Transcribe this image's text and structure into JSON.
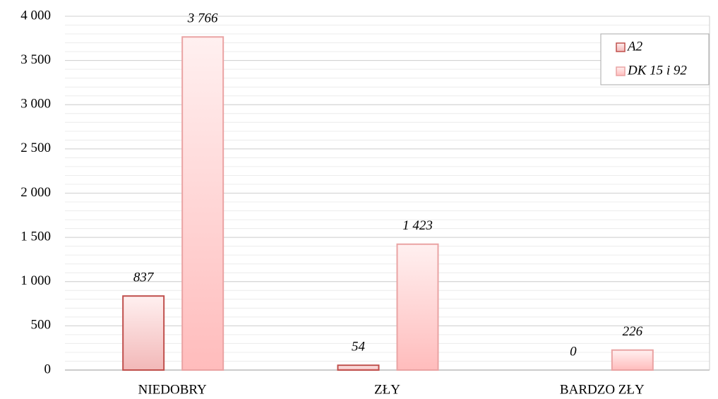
{
  "chart_data": {
    "type": "bar",
    "categories": [
      "NIEDOBRY",
      "ZŁY",
      "BARDZO ZŁY"
    ],
    "series": [
      {
        "name": "A2",
        "color": "#c0504d",
        "fill": "#f2b8b8",
        "values": [
          837,
          54,
          0
        ],
        "value_labels": [
          "837",
          "54",
          "0"
        ]
      },
      {
        "name": "DK 15 i 92",
        "color": "#eaa3a3",
        "fill": "#ffbcbc",
        "values": [
          3766,
          1423,
          226
        ],
        "value_labels": [
          "3 766",
          "1 423",
          "226"
        ]
      }
    ],
    "ylim": [
      0,
      4000
    ],
    "yticks": [
      0,
      500,
      {
        "value": 1000,
        "label": "1 000"
      },
      {
        "value": 1500,
        "label": "1 500"
      },
      {
        "value": 2000,
        "label": "2 000"
      },
      {
        "value": 2500,
        "label": "2 500"
      },
      {
        "value": 3000,
        "label": "3 000"
      },
      {
        "value": 3500,
        "label": "3 500"
      },
      {
        "value": 4000,
        "label": "4 000"
      }
    ],
    "grid": true,
    "legend": "top-right"
  }
}
